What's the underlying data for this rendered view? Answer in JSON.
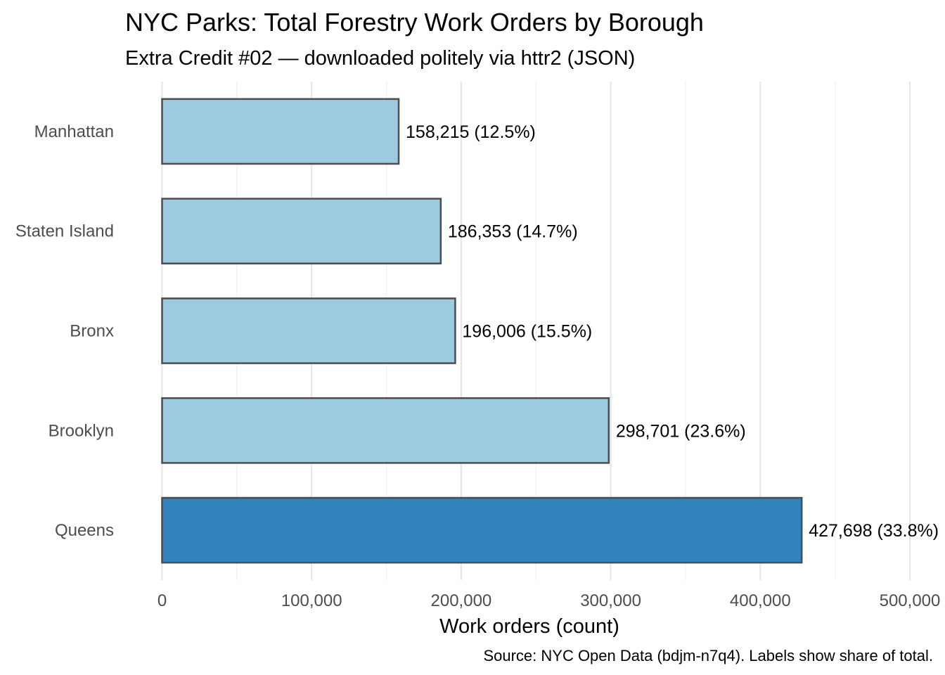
{
  "chart_data": {
    "type": "bar",
    "orientation": "horizontal",
    "title": "NYC Parks: Total Forestry Work Orders by Borough",
    "subtitle": "Extra Credit #02 — downloaded politely via httr2 (JSON)",
    "xlabel": "Work orders (count)",
    "ylabel": "",
    "caption": "Source: NYC Open Data (bdjm-n7q4). Labels show share of total.",
    "xlim": [
      0,
      500000
    ],
    "x_ticks": [
      0,
      100000,
      200000,
      300000,
      400000,
      500000
    ],
    "x_tick_labels": [
      "0",
      "100,000",
      "200,000",
      "300,000",
      "400,000",
      "500,000"
    ],
    "grid": true,
    "legend": "none",
    "categories": [
      "Manhattan",
      "Staten Island",
      "Bronx",
      "Brooklyn",
      "Queens"
    ],
    "values": [
      158215,
      186353,
      196006,
      298701,
      427698
    ],
    "data_labels": [
      "158,215 (12.5%)",
      "186,353 (14.7%)",
      "196,006 (15.5%)",
      "298,701 (23.6%)",
      "427,698 (33.8%)"
    ],
    "highlight": "Queens",
    "colors": {
      "bar_default": "#9ecae1",
      "bar_highlight": "#3182bd",
      "bar_outline": "#4d4d4d"
    }
  }
}
